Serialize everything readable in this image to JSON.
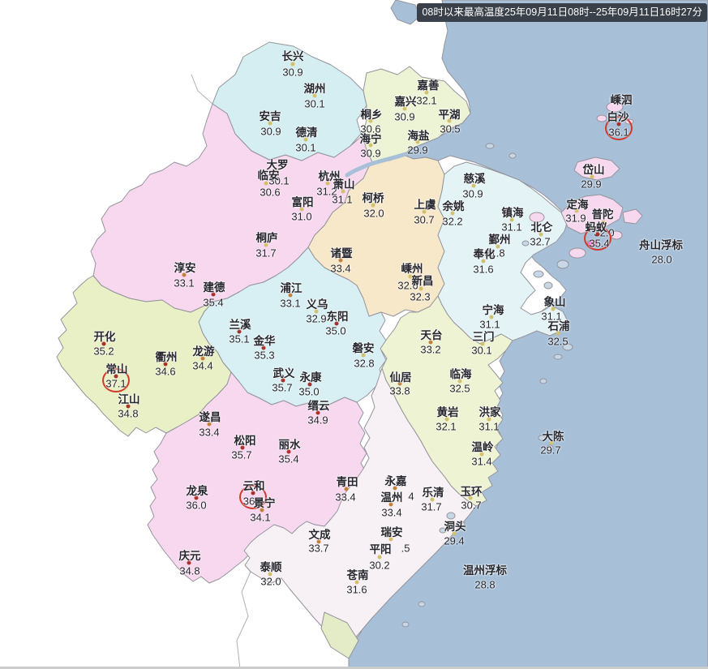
{
  "header": {
    "text": "08时以来最高温度25年09月11日08时--25年09月11日16时27分",
    "bg": "#394049",
    "color": "#ffffff"
  },
  "palette": {
    "sea": "#a7c0d8",
    "border": "#94949c",
    "faint_border": "#b0b0b8",
    "text": "#26262e",
    "dot_low": "#d2c06a",
    "dot_mid": "#c2803a",
    "dot_high": "#ab2f28",
    "circle": "#cf3a2c",
    "magenta_islet": "#ea77c0"
  },
  "regions": {
    "sea": "#a7c0d8",
    "huzhou": "#d5eef1",
    "jiaxing": "#edf4d6",
    "hangzhou": "#f8d8ee",
    "shaoxing": "#f8e8ca",
    "ningbo": "#e4f4f6",
    "zhoushan": "#f8d8ee",
    "jinhua": "#d8f0f3",
    "quzhou": "#e9f0c5",
    "taizhou": "#eef3d3",
    "lishui": "#f8d8ee",
    "wenzhou": "#f7f0f5",
    "islet": "#c7d7e5",
    "green_patch": "#e3ecc7"
  },
  "stations": [
    {
      "name": "长兴",
      "value": "30.9",
      "n": [
        361,
        68
      ],
      "d": [
        361,
        79
      ],
      "v": [
        361,
        89
      ]
    },
    {
      "name": "湖州",
      "value": "30.1",
      "n": [
        388,
        108
      ],
      "d": [
        388,
        118
      ],
      "v": [
        388,
        128
      ]
    },
    {
      "name": "安吉",
      "value": "30.9",
      "n": [
        333,
        142
      ],
      "d": [
        333,
        152
      ],
      "v": [
        334,
        162
      ]
    },
    {
      "name": "德清",
      "value": "30.1",
      "n": [
        378,
        162
      ],
      "d": [
        377,
        172
      ],
      "v": [
        377,
        182
      ]
    },
    {
      "name": "嘉善",
      "value": "32.1",
      "n": [
        528,
        104
      ],
      "d": [
        526,
        114
      ],
      "v": [
        526,
        124
      ]
    },
    {
      "name": "嘉兴",
      "value": "30.9",
      "n": [
        500,
        124
      ],
      "d": [
        499,
        134
      ],
      "v": [
        499,
        144
      ]
    },
    {
      "name": "平湖",
      "value": "30.5",
      "n": [
        554,
        140
      ],
      "d": [
        554,
        149
      ],
      "v": [
        555,
        159
      ]
    },
    {
      "name": "桐乡",
      "value": "30.6",
      "n": [
        458,
        140
      ],
      "d": [
        457,
        149
      ],
      "v": [
        457,
        159
      ]
    },
    {
      "name": "海宁",
      "value": "30.9",
      "n": [
        457,
        170
      ],
      "d": [
        457,
        179
      ],
      "v": [
        457,
        189
      ]
    },
    {
      "name": "海盐",
      "value": "29.9",
      "n": [
        516,
        166
      ],
      "d": [
        515,
        175
      ],
      "v": [
        515,
        185
      ]
    },
    {
      "name": "大罗",
      "value": "30.1",
      "n": [
        342,
        202
      ],
      "d": [
        339,
        212
      ],
      "v": [
        344,
        223
      ]
    },
    {
      "name": "临安",
      "value": "30.6",
      "n": [
        331,
        215
      ],
      "d": [
        328,
        226
      ],
      "v": [
        333,
        237
      ]
    },
    {
      "name": "杭州",
      "value": "31.2",
      "n": [
        406,
        216
      ],
      "d": [
        404,
        226
      ],
      "v": [
        403,
        236
      ]
    },
    {
      "name": "萧山",
      "value": "31.1",
      "n": [
        424,
        226
      ],
      "d": [
        423,
        236
      ],
      "v": [
        422,
        246
      ]
    },
    {
      "name": "富阳",
      "value": "31.0",
      "n": [
        373,
        248
      ],
      "d": [
        372,
        258
      ],
      "v": [
        372,
        267
      ]
    },
    {
      "name": "桐庐",
      "value": "31.7",
      "n": [
        329,
        292
      ],
      "d": [
        328,
        302
      ],
      "v": [
        328,
        312
      ]
    },
    {
      "name": "淳安",
      "value": "33.1",
      "n": [
        228,
        329
      ],
      "d": [
        227,
        339
      ],
      "v": [
        227,
        349
      ]
    },
    {
      "name": "建德",
      "value": "35.4",
      "n": [
        264,
        353
      ],
      "d": [
        263,
        363
      ],
      "v": [
        263,
        373
      ]
    },
    {
      "name": "柯桥",
      "value": "32.0",
      "n": [
        460,
        243
      ],
      "d": [
        460,
        253
      ],
      "v": [
        461,
        263
      ]
    },
    {
      "name": "上虞",
      "value": "30.7",
      "n": [
        524,
        251
      ],
      "d": [
        523,
        261
      ],
      "v": [
        523,
        271
      ]
    },
    {
      "name": "余姚",
      "value": "32.2",
      "n": [
        559,
        253
      ],
      "d": [
        558,
        263
      ],
      "v": [
        558,
        273
      ]
    },
    {
      "name": "慈溪",
      "value": "30.9",
      "n": [
        585,
        219
      ],
      "d": [
        584,
        229
      ],
      "v": [
        583,
        239
      ]
    },
    {
      "name": "诸暨",
      "value": "33.4",
      "n": [
        421,
        311
      ],
      "d": [
        420,
        321
      ],
      "v": [
        420,
        331
      ]
    },
    {
      "name": "嵊州",
      "value": "32.6",
      "n": [
        508,
        330
      ],
      "d": [
        506,
        341
      ],
      "v": [
        503,
        352
      ]
    },
    {
      "name": "新昌",
      "value": "32.3",
      "n": [
        521,
        345
      ],
      "d": [
        519,
        356
      ],
      "v": [
        518,
        366
      ]
    },
    {
      "name": "镇海",
      "value": "31.1",
      "n": [
        632,
        261
      ],
      "d": [
        631,
        271
      ],
      "v": [
        631,
        280
      ]
    },
    {
      "name": "北仑",
      "value": "32.7",
      "n": [
        668,
        279
      ],
      "d": [
        667,
        289
      ],
      "v": [
        666,
        298
      ]
    },
    {
      "name": "鄞州",
      "value": "31.8",
      "n": [
        616,
        294
      ],
      "d": [
        614,
        304
      ],
      "v": [
        610,
        312
      ]
    },
    {
      "name": "奉化",
      "value": "31.6",
      "n": [
        597,
        312
      ],
      "d": [
        596,
        322
      ],
      "v": [
        596,
        332
      ]
    },
    {
      "name": "宁海",
      "value": "31.1",
      "n": [
        608,
        381
      ],
      "d": [
        606,
        391
      ],
      "v": [
        604,
        400
      ]
    },
    {
      "name": "象山",
      "value": "31.1",
      "n": [
        684,
        371
      ],
      "d": [
        682,
        381
      ],
      "v": [
        680,
        390
      ]
    },
    {
      "name": "石浦",
      "value": "32.5",
      "n": [
        689,
        401
      ],
      "d": [
        688,
        411
      ],
      "v": [
        688,
        421
      ]
    },
    {
      "name": "嵊泗",
      "value": "",
      "n": [
        766,
        122
      ]
    },
    {
      "name": "白沙",
      "value": "36.1",
      "n": [
        762,
        143
      ],
      "d": [
        763,
        153
      ],
      "v": [
        763,
        163
      ],
      "circled": true
    },
    {
      "name": "岱山",
      "value": "29.9",
      "n": [
        732,
        208
      ],
      "d": [
        730,
        218
      ],
      "v": [
        729,
        227
      ]
    },
    {
      "name": "定海",
      "value": "31.9",
      "n": [
        712,
        251
      ],
      "d": [
        711,
        260
      ],
      "v": [
        710,
        269
      ]
    },
    {
      "name": "普陀",
      "value": "32.0",
      "n": [
        743,
        263
      ],
      "d": [
        744,
        274
      ],
      "v": [
        745,
        287
      ]
    },
    {
      "name": "蚂蚁",
      "value": "35.4",
      "n": [
        735,
        279
      ],
      "d": [
        737,
        289
      ],
      "v": [
        739,
        300
      ],
      "circled": true
    },
    {
      "name": "舟山浮标",
      "value": "28.0",
      "n": [
        815,
        301
      ],
      "v": [
        816,
        320
      ]
    },
    {
      "name": "浦江",
      "value": "33.1",
      "n": [
        359,
        354
      ],
      "d": [
        358,
        364
      ],
      "v": [
        358,
        374
      ]
    },
    {
      "name": "义乌",
      "value": "32.9",
      "n": [
        391,
        374
      ],
      "d": [
        390,
        384
      ],
      "v": [
        390,
        393
      ]
    },
    {
      "name": "东阳",
      "value": "35.0",
      "n": [
        416,
        389
      ],
      "d": [
        415,
        399
      ],
      "v": [
        414,
        408
      ]
    },
    {
      "name": "兰溪",
      "value": "35.1",
      "n": [
        296,
        399
      ],
      "d": [
        295,
        409
      ],
      "v": [
        295,
        418
      ]
    },
    {
      "name": "金华",
      "value": "35.3",
      "n": [
        326,
        419
      ],
      "d": [
        325,
        429
      ],
      "v": [
        326,
        438
      ]
    },
    {
      "name": "磐安",
      "value": "32.8",
      "n": [
        448,
        428
      ],
      "d": [
        448,
        438
      ],
      "v": [
        449,
        448
      ]
    },
    {
      "name": "武义",
      "value": "35.7",
      "n": [
        350,
        459
      ],
      "d": [
        349,
        469
      ],
      "v": [
        348,
        478
      ]
    },
    {
      "name": "永康",
      "value": "35.0",
      "n": [
        383,
        464
      ],
      "d": [
        382,
        474
      ],
      "v": [
        381,
        483
      ]
    },
    {
      "name": "开化",
      "value": "35.2",
      "n": [
        129,
        414
      ],
      "d": [
        128,
        424
      ],
      "v": [
        128,
        433
      ]
    },
    {
      "name": "常山",
      "value": "37.1",
      "n": [
        144,
        454
      ],
      "d": [
        143,
        464
      ],
      "v": [
        143,
        473
      ],
      "circled": true
    },
    {
      "name": "衢州",
      "value": "34.6",
      "n": [
        205,
        439
      ],
      "d": [
        204,
        449
      ],
      "v": [
        204,
        458
      ]
    },
    {
      "name": "龙游",
      "value": "34.4",
      "n": [
        251,
        432
      ],
      "d": [
        250,
        442
      ],
      "v": [
        250,
        451
      ]
    },
    {
      "name": "江山",
      "value": "34.8",
      "n": [
        159,
        491
      ],
      "d": [
        158,
        501
      ],
      "v": [
        158,
        510
      ]
    },
    {
      "name": "天台",
      "value": "33.2",
      "n": [
        532,
        412
      ],
      "d": [
        531,
        422
      ],
      "v": [
        531,
        431
      ]
    },
    {
      "name": "三门",
      "value": "30.1",
      "n": [
        596,
        414
      ],
      "d": [
        595,
        424
      ],
      "v": [
        594,
        432
      ]
    },
    {
      "name": "仙居",
      "value": "33.8",
      "n": [
        494,
        464
      ],
      "d": [
        493,
        473
      ],
      "v": [
        493,
        482
      ]
    },
    {
      "name": "临海",
      "value": "32.5",
      "n": [
        568,
        460
      ],
      "d": [
        567,
        470
      ],
      "v": [
        567,
        479
      ]
    },
    {
      "name": "黄岩",
      "value": "32.1",
      "n": [
        552,
        507
      ],
      "d": [
        551,
        517
      ],
      "v": [
        550,
        526
      ]
    },
    {
      "name": "洪家",
      "value": "31.1",
      "n": [
        604,
        507
      ],
      "d": [
        603,
        517
      ],
      "v": [
        603,
        526
      ]
    },
    {
      "name": "温岭",
      "value": "31.4",
      "n": [
        595,
        550
      ],
      "d": [
        594,
        560
      ],
      "v": [
        594,
        569
      ]
    },
    {
      "name": "玉环",
      "value": "30.7",
      "n": [
        581,
        605
      ],
      "d": [
        580,
        614
      ],
      "v": [
        581,
        623
      ]
    },
    {
      "name": "大陈",
      "value": "29.7",
      "n": [
        682,
        537
      ],
      "d": [
        680,
        546
      ],
      "v": [
        679,
        555
      ]
    },
    {
      "name": "缙云",
      "value": "34.9",
      "n": [
        393,
        499
      ],
      "d": [
        392,
        509
      ],
      "v": [
        392,
        518
      ]
    },
    {
      "name": "遂昌",
      "value": "33.4",
      "n": [
        259,
        513
      ],
      "d": [
        258,
        523
      ],
      "v": [
        258,
        533
      ]
    },
    {
      "name": "松阳",
      "value": "35.7",
      "n": [
        302,
        542
      ],
      "d": [
        299,
        552
      ],
      "v": [
        298,
        561
      ]
    },
    {
      "name": "丽水",
      "value": "35.4",
      "n": [
        357,
        547
      ],
      "d": [
        356,
        557
      ],
      "v": [
        356,
        566
      ]
    },
    {
      "name": "青田",
      "value": "33.4",
      "n": [
        428,
        593
      ],
      "d": [
        427,
        603
      ],
      "v": [
        426,
        613
      ]
    },
    {
      "name": "龙泉",
      "value": "36.0",
      "n": [
        243,
        604
      ],
      "d": [
        242,
        614
      ],
      "v": [
        242,
        623
      ]
    },
    {
      "name": "云和",
      "value": "36",
      "n": [
        313,
        598
      ],
      "d": [
        312,
        608
      ],
      "v": [
        307,
        618
      ],
      "circled": true
    },
    {
      "name": "景宁",
      "value": "34.1",
      "n": [
        326,
        619
      ],
      "d": [
        323,
        629
      ],
      "v": [
        321,
        638
      ]
    },
    {
      "name": "庆元",
      "value": "34.8",
      "n": [
        234,
        684
      ],
      "d": [
        233,
        694
      ],
      "v": [
        234,
        704
      ]
    },
    {
      "name": "永嘉",
      "value": "4",
      "n": [
        488,
        592
      ],
      "d": [
        487,
        602
      ],
      "v": [
        507,
        612
      ],
      "level": "mid"
    },
    {
      "name": "温州",
      "value": "33.4",
      "n": [
        483,
        612
      ],
      "d": [
        482,
        622
      ],
      "v": [
        483,
        632
      ]
    },
    {
      "name": "乐清",
      "value": "31.7",
      "n": [
        534,
        606
      ],
      "d": [
        533,
        616
      ],
      "v": [
        532,
        625
      ]
    },
    {
      "name": "瑞安",
      "value": ".5",
      "n": [
        483,
        655
      ],
      "d": [
        482,
        665
      ],
      "v": [
        500,
        676
      ]
    },
    {
      "name": "平阳",
      "value": "30.2",
      "n": [
        469,
        676
      ],
      "d": [
        468,
        687
      ],
      "v": [
        468,
        697
      ]
    },
    {
      "name": "文成",
      "value": "33.7",
      "n": [
        394,
        658
      ],
      "d": [
        393,
        668
      ],
      "v": [
        393,
        676
      ]
    },
    {
      "name": "泰顺",
      "value": "32.0",
      "n": [
        334,
        698
      ],
      "d": [
        333,
        708
      ],
      "v": [
        334,
        717
      ]
    },
    {
      "name": "苍南",
      "value": "31.6",
      "n": [
        441,
        708
      ],
      "d": [
        440,
        718
      ],
      "v": [
        440,
        727
      ]
    },
    {
      "name": "洞头",
      "value": "29.4",
      "n": [
        561,
        648
      ],
      "d": [
        560,
        658
      ],
      "v": [
        560,
        667
      ]
    },
    {
      "name": "温州浮标",
      "value": "28.8",
      "n": [
        598,
        702
      ],
      "v": [
        598,
        721
      ]
    }
  ]
}
